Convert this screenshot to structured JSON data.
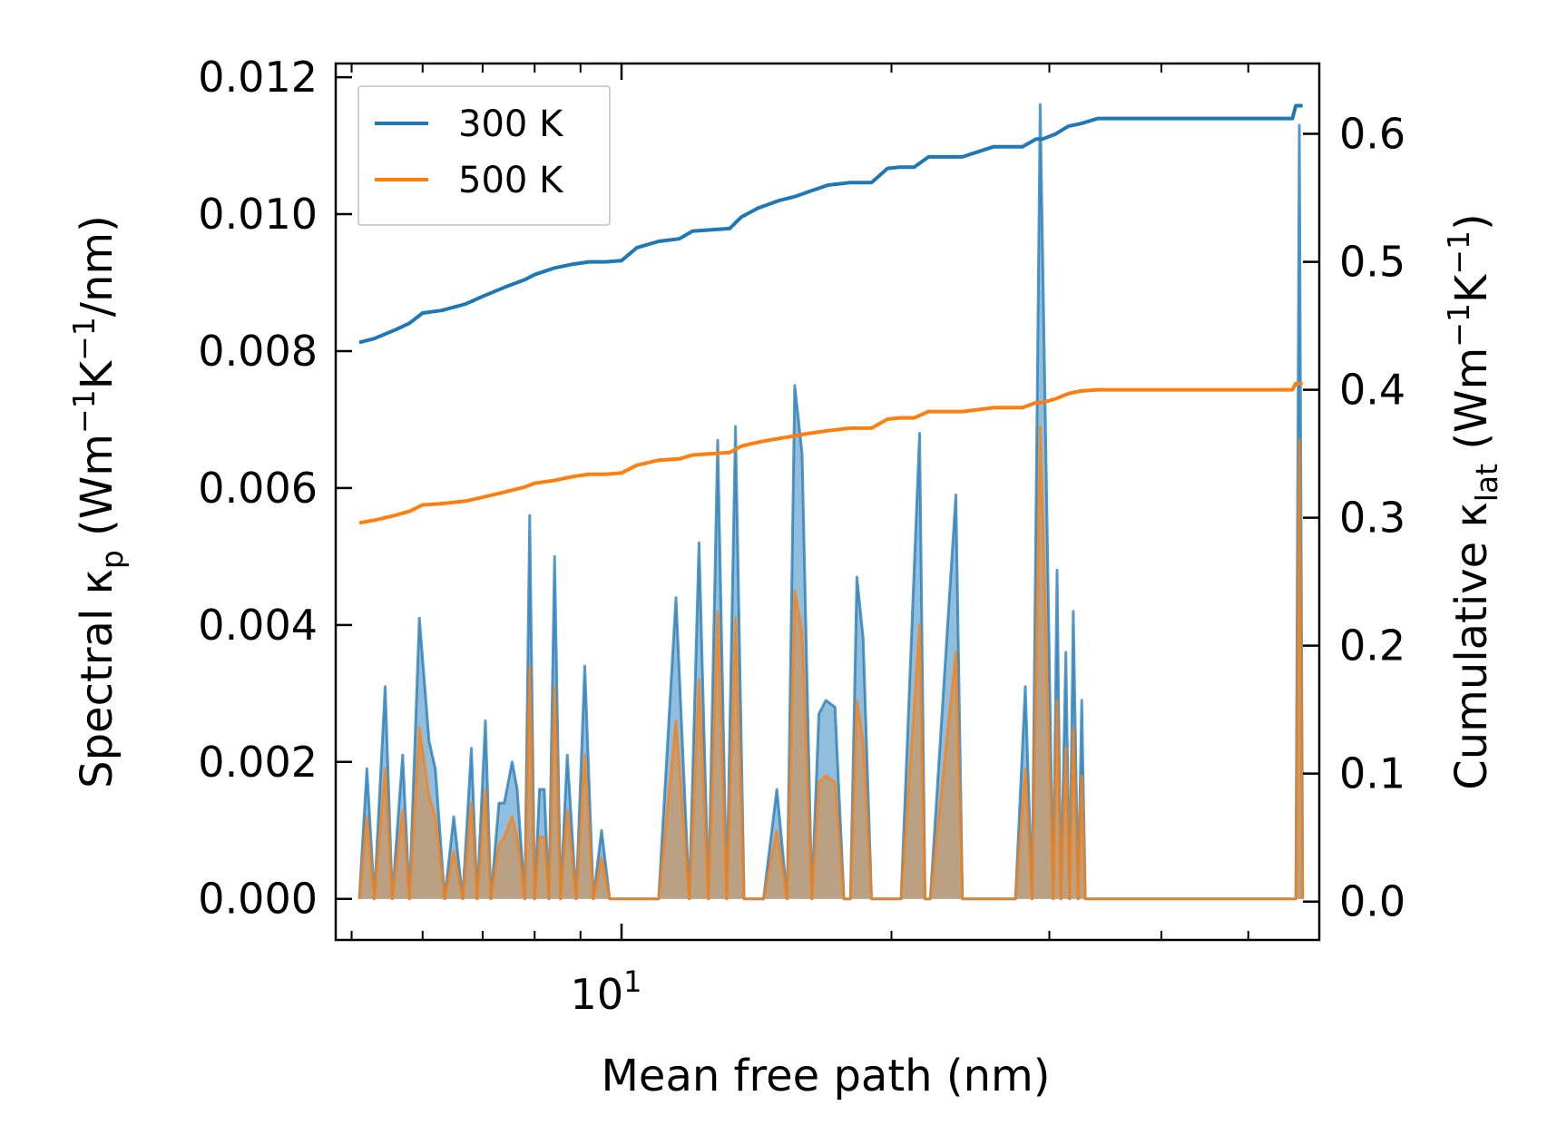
{
  "chart_data": {
    "type": "area+line (dual y-axis, log x)",
    "xlabel": "Mean free path (nm)",
    "x_scale": "log",
    "x_tick_label": {
      "base": "10",
      "exp": "1"
    },
    "x_range": [
      4.8,
      60
    ],
    "ylabel_left": {
      "pre": "Spectral κ",
      "sub": "p",
      "post1": " (Wm",
      "sup1": "−1",
      "mid": "K",
      "sup2": "−1",
      "post2": "/nm)"
    },
    "ylabel_right": {
      "pre": "Cumulative κ",
      "sub": "lat",
      "post1": " (Wm",
      "sup1": "−1",
      "mid": "K",
      "sup2": "−1",
      "post2": ")"
    },
    "y_left_range": [
      -0.0006,
      0.0122
    ],
    "y_left_ticks": [
      "0.000",
      "0.002",
      "0.004",
      "0.006",
      "0.008",
      "0.010",
      "0.012"
    ],
    "y_right_range": [
      -0.03,
      0.655
    ],
    "y_right_ticks": [
      "0.0",
      "0.1",
      "0.2",
      "0.3",
      "0.4",
      "0.5",
      "0.6"
    ],
    "legend": {
      "position": "upper-left",
      "entries": [
        "300 K",
        "500 K"
      ]
    },
    "colors": {
      "series_300K": "#1f77b4",
      "series_500K": "#ff7f0e",
      "fill_300K": "#7fb3d8",
      "fill_500K": "#c49a6c"
    },
    "spectral_series": [
      {
        "name": "300 K",
        "x": [
          5.1,
          5.2,
          5.3,
          5.45,
          5.55,
          5.7,
          5.8,
          5.95,
          6.1,
          6.2,
          6.35,
          6.5,
          6.65,
          6.8,
          6.9,
          7.05,
          7.15,
          7.3,
          7.4,
          7.55,
          7.65,
          7.8,
          7.9,
          8.0,
          8.1,
          8.2,
          8.3,
          8.42,
          8.55,
          8.7,
          8.9,
          9.1,
          9.3,
          9.5,
          9.7,
          9.85,
          10.0,
          10.2,
          10.4,
          11.0,
          11.5,
          11.9,
          12.2,
          12.5,
          12.8,
          13.1,
          13.4,
          13.7,
          14.0,
          14.4,
          14.9,
          15.3,
          15.6,
          15.9,
          16.3,
          16.6,
          16.9,
          17.3,
          17.7,
          18.0,
          18.3,
          18.6,
          19.0,
          20.5,
          21.5,
          21.8,
          22.1,
          23.6,
          24.0,
          24.4,
          27.5,
          28.2,
          28.7,
          29.3,
          30.3,
          30.6,
          30.9,
          31.3,
          31.6,
          31.9,
          32.3,
          32.6,
          32.9,
          33.3,
          33.6,
          33.9,
          34.3,
          34.6,
          34.9,
          56.5,
          57.0,
          57.5
        ],
        "y": [
          0,
          0.0019,
          0,
          0.0031,
          0,
          0.0021,
          0,
          0.0041,
          0.0023,
          0.0019,
          0,
          0.0012,
          0,
          0.0022,
          0,
          0.0026,
          0,
          0.0014,
          0.0014,
          0.002,
          0.0016,
          0,
          0.0056,
          0,
          0.0016,
          0.0016,
          0,
          0.005,
          0,
          0.0021,
          0,
          0.0034,
          0,
          0.001,
          0,
          0,
          0,
          0,
          0,
          0,
          0.0044,
          0,
          0.0052,
          0,
          0.0067,
          0,
          0.0069,
          0,
          0,
          0,
          0.0016,
          0,
          0.0075,
          0.0065,
          0,
          0.0027,
          0.0029,
          0.0028,
          0,
          0,
          0.0047,
          0.0038,
          0,
          0,
          0.0068,
          0,
          0,
          0.0059,
          0,
          0,
          0,
          0.0031,
          0,
          0.0116,
          0,
          0.0048,
          0,
          0.0036,
          0,
          0.0042,
          0,
          0.0029,
          0,
          0,
          0,
          0,
          0,
          0,
          0,
          0,
          0.0113,
          0
        ]
      },
      {
        "name": "500 K",
        "x": [
          5.1,
          5.2,
          5.3,
          5.45,
          5.55,
          5.7,
          5.8,
          5.95,
          6.1,
          6.2,
          6.35,
          6.5,
          6.65,
          6.8,
          6.9,
          7.05,
          7.15,
          7.3,
          7.4,
          7.55,
          7.65,
          7.8,
          7.9,
          8.0,
          8.1,
          8.2,
          8.3,
          8.42,
          8.55,
          8.7,
          8.9,
          9.1,
          9.3,
          9.5,
          9.7,
          9.85,
          10.0,
          10.2,
          10.4,
          11.0,
          11.5,
          11.9,
          12.2,
          12.5,
          12.8,
          13.1,
          13.4,
          13.7,
          14.0,
          14.4,
          14.9,
          15.3,
          15.6,
          15.9,
          16.3,
          16.6,
          16.9,
          17.3,
          17.7,
          18.0,
          18.3,
          18.6,
          19.0,
          20.5,
          21.5,
          21.8,
          22.1,
          23.6,
          24.0,
          24.4,
          27.5,
          28.2,
          28.7,
          29.3,
          30.3,
          30.6,
          30.9,
          31.3,
          31.6,
          31.9,
          32.3,
          32.6,
          32.9,
          33.3,
          33.6,
          33.9,
          34.3,
          34.6,
          34.9,
          56.5,
          57.0,
          57.5
        ],
        "y": [
          0,
          0.0012,
          0,
          0.0019,
          0,
          0.0013,
          0,
          0.0025,
          0.0015,
          0.0012,
          0,
          0.0007,
          0,
          0.0014,
          0,
          0.0016,
          0,
          0.0008,
          0.0009,
          0.0012,
          0.0009,
          0,
          0.0034,
          0,
          0.0009,
          0.0009,
          0,
          0.0031,
          0,
          0.0013,
          0,
          0.0021,
          0,
          0.0006,
          0,
          0,
          0,
          0,
          0,
          0,
          0.0026,
          0,
          0.0032,
          0,
          0.0042,
          0,
          0.0041,
          0,
          0,
          0,
          0.001,
          0,
          0.0045,
          0.0039,
          0,
          0.0017,
          0.0018,
          0.0017,
          0,
          0,
          0.0029,
          0.0023,
          0,
          0,
          0.004,
          0,
          0,
          0.0036,
          0,
          0,
          0,
          0.0019,
          0,
          0.0069,
          0,
          0.0029,
          0,
          0.0022,
          0,
          0.0025,
          0,
          0.0018,
          0,
          0,
          0,
          0,
          0,
          0,
          0,
          0,
          0.0067,
          0
        ]
      }
    ],
    "cumulative_series": [
      {
        "name": "300 K",
        "x": [
          5.1,
          5.3,
          5.6,
          5.8,
          6.0,
          6.3,
          6.7,
          7.0,
          7.4,
          7.8,
          8.0,
          8.4,
          8.8,
          9.2,
          9.6,
          10.0,
          10.4,
          11.0,
          11.6,
          12.0,
          12.6,
          13.2,
          13.6,
          14.2,
          15.0,
          15.6,
          16.2,
          17.0,
          18.0,
          18.4,
          19.0,
          19.8,
          20.4,
          21.2,
          22.0,
          23.0,
          24.0,
          26.0,
          28.0,
          29.0,
          29.5,
          30.5,
          31.5,
          32.5,
          34.0,
          35.0,
          40.0,
          50.0,
          56.0,
          56.5,
          57.5
        ],
        "y": [
          0.437,
          0.44,
          0.447,
          0.452,
          0.46,
          0.462,
          0.467,
          0.473,
          0.48,
          0.486,
          0.49,
          0.495,
          0.498,
          0.5,
          0.5,
          0.501,
          0.511,
          0.516,
          0.518,
          0.524,
          0.525,
          0.526,
          0.535,
          0.542,
          0.548,
          0.551,
          0.555,
          0.56,
          0.562,
          0.562,
          0.562,
          0.573,
          0.574,
          0.574,
          0.582,
          0.582,
          0.582,
          0.59,
          0.59,
          0.596,
          0.596,
          0.6,
          0.606,
          0.608,
          0.612,
          0.612,
          0.612,
          0.612,
          0.612,
          0.622,
          0.622
        ]
      },
      {
        "name": "500 K",
        "x": [
          5.1,
          5.3,
          5.6,
          5.8,
          6.0,
          6.3,
          6.7,
          7.0,
          7.4,
          7.8,
          8.0,
          8.4,
          8.8,
          9.2,
          9.6,
          10.0,
          10.4,
          11.0,
          11.6,
          12.0,
          12.6,
          13.2,
          13.6,
          14.2,
          15.0,
          15.6,
          16.2,
          17.0,
          18.0,
          18.4,
          19.0,
          19.8,
          20.4,
          21.2,
          22.0,
          23.0,
          24.0,
          26.0,
          28.0,
          29.0,
          29.5,
          30.5,
          31.5,
          32.5,
          34.0,
          35.0,
          40.0,
          50.0,
          56.0,
          56.5,
          57.5
        ],
        "y": [
          0.296,
          0.298,
          0.302,
          0.305,
          0.31,
          0.311,
          0.313,
          0.316,
          0.32,
          0.324,
          0.327,
          0.329,
          0.332,
          0.334,
          0.334,
          0.335,
          0.341,
          0.345,
          0.346,
          0.349,
          0.35,
          0.351,
          0.356,
          0.359,
          0.362,
          0.364,
          0.366,
          0.368,
          0.37,
          0.37,
          0.37,
          0.377,
          0.378,
          0.378,
          0.383,
          0.383,
          0.383,
          0.386,
          0.386,
          0.39,
          0.39,
          0.393,
          0.397,
          0.399,
          0.4,
          0.4,
          0.4,
          0.4,
          0.4,
          0.405,
          0.405
        ]
      }
    ]
  }
}
